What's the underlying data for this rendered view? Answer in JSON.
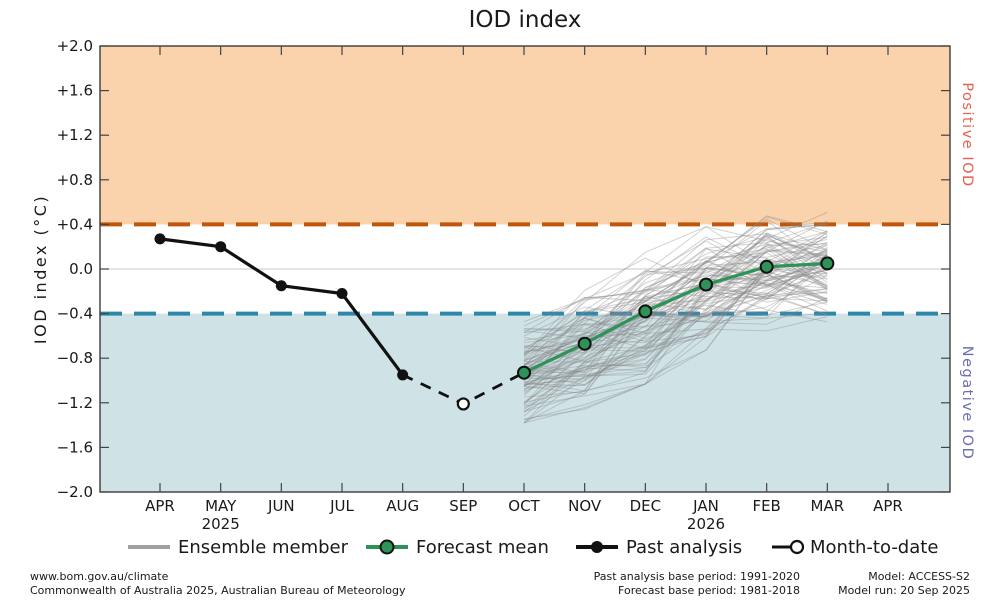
{
  "title": "IOD index",
  "chart_data": {
    "type": "line",
    "title": "IOD index",
    "xlabel": "",
    "ylabel": "IOD index (°C)",
    "ylim": [
      -2.0,
      2.0
    ],
    "legend_position": "bottom",
    "grid": "single horizontal gridline at 0.0",
    "x_categories": [
      "APR",
      "MAY",
      "JUN",
      "JUL",
      "AUG",
      "SEP",
      "OCT",
      "NOV",
      "DEC",
      "JAN",
      "FEB",
      "MAR",
      "APR"
    ],
    "year_labels": [
      {
        "month_index": 1,
        "label": "2025"
      },
      {
        "month_index": 9,
        "label": "2026"
      }
    ],
    "y_ticks": [
      {
        "value": 2.0,
        "label": "+2.0"
      },
      {
        "value": 1.6,
        "label": "+1.6"
      },
      {
        "value": 1.2,
        "label": "+1.2"
      },
      {
        "value": 0.8,
        "label": "+0.8"
      },
      {
        "value": 0.4,
        "label": "+0.4"
      },
      {
        "value": 0.0,
        "label": "0.0"
      },
      {
        "value": -0.4,
        "label": "−0.4"
      },
      {
        "value": -0.8,
        "label": "−0.8"
      },
      {
        "value": -1.2,
        "label": "−1.2"
      },
      {
        "value": -1.6,
        "label": "−1.6"
      },
      {
        "value": -2.0,
        "label": "−2.0"
      }
    ],
    "thresholds": {
      "positive": {
        "value": 0.4,
        "line_color": "#c25608",
        "band_color": "#fad2ab",
        "label": "Positive IOD",
        "label_color": "#e8604f"
      },
      "negative": {
        "value": -0.4,
        "line_color": "#2e87a9",
        "band_color": "#cfe3e7",
        "label": "Negative IOD",
        "label_color": "#6b6fb2"
      }
    },
    "series": {
      "past_analysis": {
        "name": "Past analysis",
        "color": "#111111",
        "style": "solid line, filled circle markers",
        "months": [
          "APR",
          "MAY",
          "JUN",
          "JUL",
          "AUG"
        ],
        "values": [
          0.27,
          0.2,
          -0.15,
          -0.22,
          -0.95
        ]
      },
      "month_to_date": {
        "name": "Month-to-date",
        "color": "#111111",
        "style": "dashed connector, open circle marker",
        "month": "SEP",
        "value": -1.21
      },
      "forecast_mean": {
        "name": "Forecast mean",
        "color": "#2e9358",
        "style": "solid line, green circle markers with black edge",
        "months": [
          "OCT",
          "NOV",
          "DEC",
          "JAN",
          "FEB",
          "MAR"
        ],
        "values": [
          -0.93,
          -0.67,
          -0.38,
          -0.14,
          0.02,
          0.05
        ]
      },
      "ensemble": {
        "name": "Ensemble member",
        "color": "#8a8a8a",
        "opacity": 0.38,
        "count": 99,
        "seed": 11,
        "months": [
          "OCT",
          "NOV",
          "DEC",
          "JAN",
          "FEB",
          "MAR"
        ],
        "envelope_min": [
          -1.38,
          -1.32,
          -1.18,
          -0.82,
          -0.62,
          -0.5
        ],
        "envelope_max": [
          -0.42,
          -0.12,
          0.15,
          0.38,
          0.58,
          0.63
        ]
      }
    }
  },
  "legend": {
    "items": [
      {
        "label": "Ensemble member"
      },
      {
        "label": "Forecast mean"
      },
      {
        "label": "Past analysis"
      },
      {
        "label": "Month-to-date"
      }
    ]
  },
  "footer": {
    "left_line1": "www.bom.gov.au/climate",
    "left_line2": "Commonwealth of Australia 2025, Australian Bureau of Meteorology",
    "mid_line1": "Past analysis base period: 1991-2020",
    "mid_line2": "Forecast base period: 1981-2018",
    "right_line1": "Model: ACCESS-S2",
    "right_line2": "Model run: 20 Sep 2025"
  }
}
